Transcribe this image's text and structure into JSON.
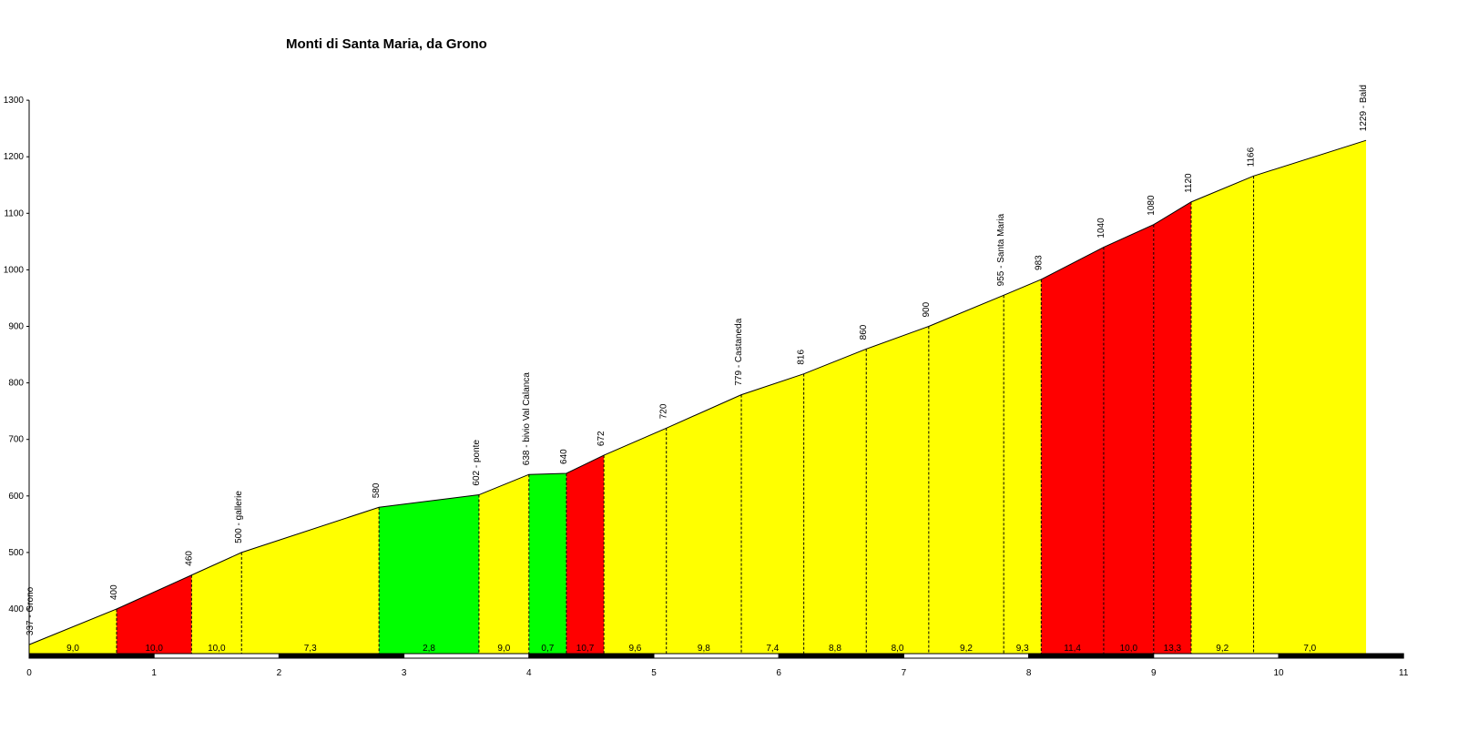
{
  "chart_data": {
    "type": "area",
    "title": "Monti di Santa Maria, da Grono",
    "xlabel": "",
    "ylabel": "",
    "xlim": [
      0,
      11
    ],
    "ylim": [
      310,
      1300
    ],
    "y_ticks": [
      400,
      500,
      600,
      700,
      800,
      900,
      1000,
      1100,
      1200,
      1300
    ],
    "x_ticks": [
      0,
      1,
      2,
      3,
      4,
      5,
      6,
      7,
      8,
      9,
      10,
      11
    ],
    "grid": false,
    "profile": [
      {
        "km": 0.0,
        "alt": 337,
        "label": "337 - Grono"
      },
      {
        "km": 0.7,
        "alt": 400,
        "label": "400"
      },
      {
        "km": 1.3,
        "alt": 460,
        "label": "460"
      },
      {
        "km": 1.7,
        "alt": 500,
        "label": "500 - gallerie"
      },
      {
        "km": 2.8,
        "alt": 580,
        "label": "580"
      },
      {
        "km": 3.6,
        "alt": 602,
        "label": "602 - ponte"
      },
      {
        "km": 4.0,
        "alt": 638,
        "label": "638 - bivio Val Calanca"
      },
      {
        "km": 4.3,
        "alt": 640,
        "label": "640"
      },
      {
        "km": 4.6,
        "alt": 672,
        "label": "672"
      },
      {
        "km": 5.1,
        "alt": 720,
        "label": "720"
      },
      {
        "km": 5.7,
        "alt": 779,
        "label": "779 - Castaneda"
      },
      {
        "km": 6.2,
        "alt": 816,
        "label": "816"
      },
      {
        "km": 6.7,
        "alt": 860,
        "label": "860"
      },
      {
        "km": 7.2,
        "alt": 900,
        "label": "900"
      },
      {
        "km": 7.8,
        "alt": 955,
        "label": "955 - Santa Maria"
      },
      {
        "km": 8.1,
        "alt": 983,
        "label": "983"
      },
      {
        "km": 8.6,
        "alt": 1040,
        "label": "1040"
      },
      {
        "km": 9.0,
        "alt": 1080,
        "label": "1080"
      },
      {
        "km": 9.3,
        "alt": 1120,
        "label": "1120"
      },
      {
        "km": 9.8,
        "alt": 1166,
        "label": "1166"
      },
      {
        "km": 10.7,
        "alt": 1229,
        "label": "1229 - Bald"
      }
    ],
    "segments": [
      {
        "gradient": "9,0",
        "color": "#ffff00"
      },
      {
        "gradient": "10,0",
        "color": "#ff0000"
      },
      {
        "gradient": "10,0",
        "color": "#ffff00"
      },
      {
        "gradient": "7,3",
        "color": "#ffff00"
      },
      {
        "gradient": "2,8",
        "color": "#00ff00"
      },
      {
        "gradient": "9,0",
        "color": "#ffff00"
      },
      {
        "gradient": "0,7",
        "color": "#00ff00"
      },
      {
        "gradient": "10,7",
        "color": "#ff0000"
      },
      {
        "gradient": "9,6",
        "color": "#ffff00"
      },
      {
        "gradient": "9,8",
        "color": "#ffff00"
      },
      {
        "gradient": "7,4",
        "color": "#ffff00"
      },
      {
        "gradient": "8,8",
        "color": "#ffff00"
      },
      {
        "gradient": "8,0",
        "color": "#ffff00"
      },
      {
        "gradient": "9,2",
        "color": "#ffff00"
      },
      {
        "gradient": "9,3",
        "color": "#ffff00"
      },
      {
        "gradient": "11,4",
        "color": "#ff0000"
      },
      {
        "gradient": "10,0",
        "color": "#ff0000"
      },
      {
        "gradient": "13,3",
        "color": "#ff0000"
      },
      {
        "gradient": "9,2",
        "color": "#ffff00"
      },
      {
        "gradient": "7,0",
        "color": "#ffff00"
      }
    ],
    "colors": {
      "easy": "#00ff00",
      "medium": "#ffff00",
      "hard": "#ff0000",
      "axis": "#000000"
    }
  }
}
